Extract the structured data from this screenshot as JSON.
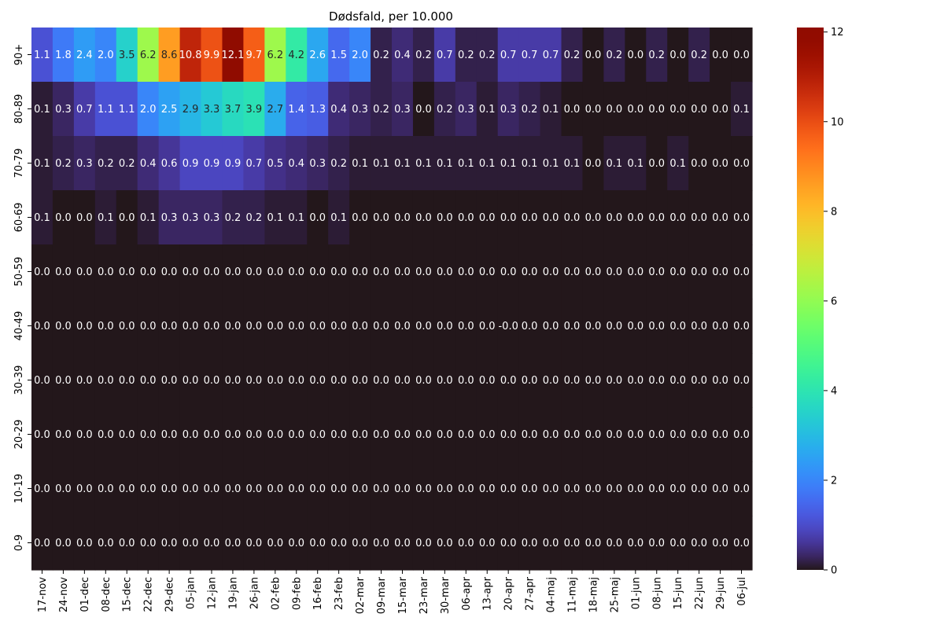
{
  "chart_data": {
    "type": "heatmap",
    "title": "Dødsfald, per 10.000",
    "colormap": "turbo",
    "value_range": [
      0,
      12.1
    ],
    "colorbar_ticks": [
      "0",
      "2",
      "4",
      "6",
      "8",
      "10",
      "12"
    ],
    "x_labels": [
      "17-nov",
      "24-nov",
      "01-dec",
      "08-dec",
      "15-dec",
      "22-dec",
      "29-dec",
      "05-jan",
      "12-jan",
      "19-jan",
      "26-jan",
      "02-feb",
      "09-feb",
      "16-feb",
      "23-feb",
      "02-mar",
      "09-mar",
      "15-mar",
      "23-mar",
      "30-mar",
      "06-apr",
      "13-apr",
      "20-apr",
      "27-apr",
      "04-maj",
      "11-maj",
      "18-maj",
      "25-maj",
      "01-jun",
      "08-jun",
      "15-jun",
      "22-jun",
      "29-jun",
      "06-jul"
    ],
    "y_labels": [
      "90+",
      "80-89",
      "70-79",
      "60-69",
      "50-59",
      "40-49",
      "30-39",
      "20-29",
      "10-19",
      "0-9"
    ],
    "values": [
      [
        1.1,
        1.8,
        2.4,
        2.0,
        3.5,
        6.2,
        8.6,
        10.8,
        9.9,
        12.1,
        9.7,
        6.2,
        4.2,
        2.6,
        1.5,
        2.0,
        0.2,
        0.4,
        0.2,
        0.7,
        0.2,
        0.2,
        0.7,
        0.7,
        0.7,
        0.2,
        0.0,
        0.2,
        0.0,
        0.2,
        0.0,
        0.2,
        0.0,
        0.0
      ],
      [
        0.1,
        0.3,
        0.7,
        1.1,
        1.1,
        2.0,
        2.5,
        2.9,
        3.3,
        3.7,
        3.9,
        2.7,
        1.4,
        1.3,
        0.4,
        0.3,
        0.2,
        0.3,
        0.0,
        0.2,
        0.3,
        0.1,
        0.3,
        0.2,
        0.1,
        0.0,
        0.0,
        0.0,
        0.0,
        0.0,
        0.0,
        0.0,
        0.0,
        0.1
      ],
      [
        0.1,
        0.2,
        0.3,
        0.2,
        0.2,
        0.4,
        0.6,
        0.9,
        0.9,
        0.9,
        0.7,
        0.5,
        0.4,
        0.3,
        0.2,
        0.1,
        0.1,
        0.1,
        0.1,
        0.1,
        0.1,
        0.1,
        0.1,
        0.1,
        0.1,
        0.1,
        0.0,
        0.1,
        0.1,
        0.0,
        0.1,
        0.0,
        0.0,
        0.0
      ],
      [
        0.1,
        0.0,
        0.0,
        0.1,
        0.0,
        0.1,
        0.3,
        0.3,
        0.3,
        0.2,
        0.2,
        0.1,
        0.1,
        0.0,
        0.1,
        0.0,
        0.0,
        0.0,
        0.0,
        0.0,
        0.0,
        0.0,
        0.0,
        0.0,
        0.0,
        0.0,
        0.0,
        0.0,
        0.0,
        0.0,
        0.0,
        0.0,
        0.0,
        0.0
      ],
      [
        0.0,
        0.0,
        0.0,
        0.0,
        0.0,
        0.0,
        0.0,
        0.0,
        0.0,
        0.0,
        0.0,
        0.0,
        0.0,
        0.0,
        0.0,
        0.0,
        0.0,
        0.0,
        0.0,
        0.0,
        0.0,
        0.0,
        0.0,
        0.0,
        0.0,
        0.0,
        0.0,
        0.0,
        0.0,
        0.0,
        0.0,
        0.0,
        0.0,
        0.0
      ],
      [
        0.0,
        0.0,
        0.0,
        0.0,
        0.0,
        0.0,
        0.0,
        0.0,
        0.0,
        0.0,
        0.0,
        0.0,
        0.0,
        0.0,
        0.0,
        0.0,
        0.0,
        0.0,
        0.0,
        0.0,
        0.0,
        0.0,
        -0.0,
        0.0,
        0.0,
        0.0,
        0.0,
        0.0,
        0.0,
        0.0,
        0.0,
        0.0,
        0.0,
        0.0
      ],
      [
        0.0,
        0.0,
        0.0,
        0.0,
        0.0,
        0.0,
        0.0,
        0.0,
        0.0,
        0.0,
        0.0,
        0.0,
        0.0,
        0.0,
        0.0,
        0.0,
        0.0,
        0.0,
        0.0,
        0.0,
        0.0,
        0.0,
        0.0,
        0.0,
        0.0,
        0.0,
        0.0,
        0.0,
        0.0,
        0.0,
        0.0,
        0.0,
        0.0,
        0.0
      ],
      [
        0.0,
        0.0,
        0.0,
        0.0,
        0.0,
        0.0,
        0.0,
        0.0,
        0.0,
        0.0,
        0.0,
        0.0,
        0.0,
        0.0,
        0.0,
        0.0,
        0.0,
        0.0,
        0.0,
        0.0,
        0.0,
        0.0,
        0.0,
        0.0,
        0.0,
        0.0,
        0.0,
        0.0,
        0.0,
        0.0,
        0.0,
        0.0,
        0.0,
        0.0
      ],
      [
        0.0,
        0.0,
        0.0,
        0.0,
        0.0,
        0.0,
        0.0,
        0.0,
        0.0,
        0.0,
        0.0,
        0.0,
        0.0,
        0.0,
        0.0,
        0.0,
        0.0,
        0.0,
        0.0,
        0.0,
        0.0,
        0.0,
        0.0,
        0.0,
        0.0,
        0.0,
        0.0,
        0.0,
        0.0,
        0.0,
        0.0,
        0.0,
        0.0,
        0.0
      ],
      [
        0.0,
        0.0,
        0.0,
        0.0,
        0.0,
        0.0,
        0.0,
        0.0,
        0.0,
        0.0,
        0.0,
        0.0,
        0.0,
        0.0,
        0.0,
        0.0,
        0.0,
        0.0,
        0.0,
        0.0,
        0.0,
        0.0,
        0.0,
        0.0,
        0.0,
        0.0,
        0.0,
        0.0,
        0.0,
        0.0,
        0.0,
        0.0,
        0.0,
        0.0
      ]
    ],
    "value_labels": [
      [
        "1.1",
        "1.8",
        "2.4",
        "2.0",
        "3.5",
        "6.2",
        "8.6",
        "10.8",
        "9.9",
        "12.1",
        "9.7",
        "6.2",
        "4.2",
        "2.6",
        "1.5",
        "2.0",
        "0.2",
        "0.4",
        "0.2",
        "0.7",
        "0.2",
        "0.2",
        "0.7",
        "0.7",
        "0.7",
        "0.2",
        "0.0",
        "0.2",
        "0.0",
        "0.2",
        "0.0",
        "0.2",
        "0.0",
        "0.0"
      ],
      [
        "0.1",
        "0.3",
        "0.7",
        "1.1",
        "1.1",
        "2.0",
        "2.5",
        "2.9",
        "3.3",
        "3.7",
        "3.9",
        "2.7",
        "1.4",
        "1.3",
        "0.4",
        "0.3",
        "0.2",
        "0.3",
        "0.0",
        "0.2",
        "0.3",
        "0.1",
        "0.3",
        "0.2",
        "0.1",
        "0.0",
        "0.0",
        "0.0",
        "0.0",
        "0.0",
        "0.0",
        "0.0",
        "0.0",
        "0.1"
      ],
      [
        "0.1",
        "0.2",
        "0.3",
        "0.2",
        "0.2",
        "0.4",
        "0.6",
        "0.9",
        "0.9",
        "0.9",
        "0.7",
        "0.5",
        "0.4",
        "0.3",
        "0.2",
        "0.1",
        "0.1",
        "0.1",
        "0.1",
        "0.1",
        "0.1",
        "0.1",
        "0.1",
        "0.1",
        "0.1",
        "0.1",
        "0.0",
        "0.1",
        "0.1",
        "0.0",
        "0.1",
        "0.0",
        "0.0",
        "0.0"
      ],
      [
        "0.1",
        "0.0",
        "0.0",
        "0.1",
        "0.0",
        "0.1",
        "0.3",
        "0.3",
        "0.3",
        "0.2",
        "0.2",
        "0.1",
        "0.1",
        "0.0",
        "0.1",
        "0.0",
        "0.0",
        "0.0",
        "0.0",
        "0.0",
        "0.0",
        "0.0",
        "0.0",
        "0.0",
        "0.0",
        "0.0",
        "0.0",
        "0.0",
        "0.0",
        "0.0",
        "0.0",
        "0.0",
        "0.0",
        "0.0"
      ],
      [
        "0.0",
        "0.0",
        "0.0",
        "0.0",
        "0.0",
        "0.0",
        "0.0",
        "0.0",
        "0.0",
        "0.0",
        "0.0",
        "0.0",
        "0.0",
        "0.0",
        "0.0",
        "0.0",
        "0.0",
        "0.0",
        "0.0",
        "0.0",
        "0.0",
        "0.0",
        "0.0",
        "0.0",
        "0.0",
        "0.0",
        "0.0",
        "0.0",
        "0.0",
        "0.0",
        "0.0",
        "0.0",
        "0.0",
        "0.0"
      ],
      [
        "0.0",
        "0.0",
        "0.0",
        "0.0",
        "0.0",
        "0.0",
        "0.0",
        "0.0",
        "0.0",
        "0.0",
        "0.0",
        "0.0",
        "0.0",
        "0.0",
        "0.0",
        "0.0",
        "0.0",
        "0.0",
        "0.0",
        "0.0",
        "0.0",
        "0.0",
        "-0.0",
        "0.0",
        "0.0",
        "0.0",
        "0.0",
        "0.0",
        "0.0",
        "0.0",
        "0.0",
        "0.0",
        "0.0",
        "0.0"
      ],
      [
        "0.0",
        "0.0",
        "0.0",
        "0.0",
        "0.0",
        "0.0",
        "0.0",
        "0.0",
        "0.0",
        "0.0",
        "0.0",
        "0.0",
        "0.0",
        "0.0",
        "0.0",
        "0.0",
        "0.0",
        "0.0",
        "0.0",
        "0.0",
        "0.0",
        "0.0",
        "0.0",
        "0.0",
        "0.0",
        "0.0",
        "0.0",
        "0.0",
        "0.0",
        "0.0",
        "0.0",
        "0.0",
        "0.0",
        "0.0"
      ],
      [
        "0.0",
        "0.0",
        "0.0",
        "0.0",
        "0.0",
        "0.0",
        "0.0",
        "0.0",
        "0.0",
        "0.0",
        "0.0",
        "0.0",
        "0.0",
        "0.0",
        "0.0",
        "0.0",
        "0.0",
        "0.0",
        "0.0",
        "0.0",
        "0.0",
        "0.0",
        "0.0",
        "0.0",
        "0.0",
        "0.0",
        "0.0",
        "0.0",
        "0.0",
        "0.0",
        "0.0",
        "0.0",
        "0.0",
        "0.0"
      ],
      [
        "0.0",
        "0.0",
        "0.0",
        "0.0",
        "0.0",
        "0.0",
        "0.0",
        "0.0",
        "0.0",
        "0.0",
        "0.0",
        "0.0",
        "0.0",
        "0.0",
        "0.0",
        "0.0",
        "0.0",
        "0.0",
        "0.0",
        "0.0",
        "0.0",
        "0.0",
        "0.0",
        "0.0",
        "0.0",
        "0.0",
        "0.0",
        "0.0",
        "0.0",
        "0.0",
        "0.0",
        "0.0",
        "0.0",
        "0.0"
      ],
      [
        "0.0",
        "0.0",
        "0.0",
        "0.0",
        "0.0",
        "0.0",
        "0.0",
        "0.0",
        "0.0",
        "0.0",
        "0.0",
        "0.0",
        "0.0",
        "0.0",
        "0.0",
        "0.0",
        "0.0",
        "0.0",
        "0.0",
        "0.0",
        "0.0",
        "0.0",
        "0.0",
        "0.0",
        "0.0",
        "0.0",
        "0.0",
        "0.0",
        "0.0",
        "0.0",
        "0.0",
        "0.0",
        "0.0",
        "0.0"
      ]
    ]
  }
}
